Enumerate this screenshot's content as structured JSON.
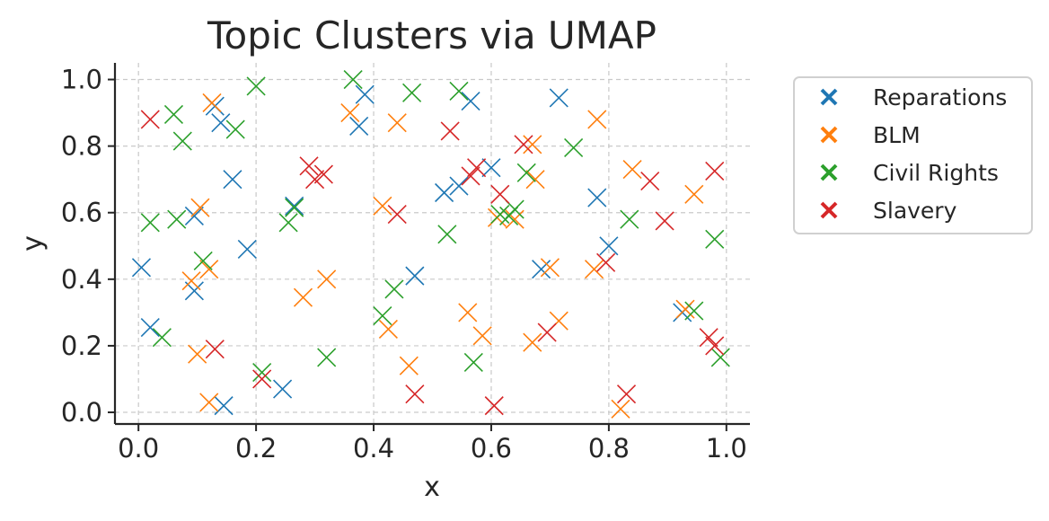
{
  "chart_data": {
    "type": "scatter",
    "title": "Topic Clusters via UMAP",
    "xlabel": "x",
    "ylabel": "y",
    "xlim": [
      -0.04,
      1.04
    ],
    "ylim": [
      -0.035,
      1.05
    ],
    "xticks": [
      0.0,
      0.2,
      0.4,
      0.6,
      0.8,
      1.0
    ],
    "xtick_labels": [
      "0.0",
      "0.2",
      "0.4",
      "0.6",
      "0.8",
      "1.0"
    ],
    "yticks": [
      0.0,
      0.2,
      0.4,
      0.6,
      0.8,
      1.0
    ],
    "ytick_labels": [
      "0.0",
      "0.2",
      "0.4",
      "0.6",
      "0.8",
      "1.0"
    ],
    "grid": true,
    "legend_position": "outside-right-top",
    "marker": "x",
    "series": [
      {
        "name": "Reparations",
        "color": "#1f77b4",
        "points": [
          [
            0.005,
            0.435
          ],
          [
            0.02,
            0.255
          ],
          [
            0.095,
            0.365
          ],
          [
            0.095,
            0.59
          ],
          [
            0.13,
            0.92
          ],
          [
            0.14,
            0.87
          ],
          [
            0.145,
            0.02
          ],
          [
            0.16,
            0.7
          ],
          [
            0.185,
            0.49
          ],
          [
            0.245,
            0.07
          ],
          [
            0.265,
            0.62
          ],
          [
            0.375,
            0.86
          ],
          [
            0.385,
            0.955
          ],
          [
            0.47,
            0.41
          ],
          [
            0.52,
            0.66
          ],
          [
            0.545,
            0.68
          ],
          [
            0.565,
            0.935
          ],
          [
            0.6,
            0.735
          ],
          [
            0.685,
            0.43
          ],
          [
            0.715,
            0.945
          ],
          [
            0.78,
            0.645
          ],
          [
            0.8,
            0.5
          ],
          [
            0.925,
            0.3
          ]
        ]
      },
      {
        "name": "BLM",
        "color": "#ff7f0e",
        "points": [
          [
            0.09,
            0.395
          ],
          [
            0.1,
            0.175
          ],
          [
            0.105,
            0.615
          ],
          [
            0.12,
            0.03
          ],
          [
            0.12,
            0.43
          ],
          [
            0.125,
            0.93
          ],
          [
            0.28,
            0.345
          ],
          [
            0.32,
            0.4
          ],
          [
            0.36,
            0.9
          ],
          [
            0.415,
            0.62
          ],
          [
            0.425,
            0.25
          ],
          [
            0.44,
            0.87
          ],
          [
            0.46,
            0.14
          ],
          [
            0.56,
            0.3
          ],
          [
            0.585,
            0.23
          ],
          [
            0.61,
            0.585
          ],
          [
            0.64,
            0.58
          ],
          [
            0.67,
            0.21
          ],
          [
            0.67,
            0.805
          ],
          [
            0.675,
            0.7
          ],
          [
            0.7,
            0.435
          ],
          [
            0.715,
            0.275
          ],
          [
            0.775,
            0.43
          ],
          [
            0.78,
            0.88
          ],
          [
            0.82,
            0.01
          ],
          [
            0.84,
            0.73
          ],
          [
            0.93,
            0.31
          ],
          [
            0.945,
            0.655
          ]
        ]
      },
      {
        "name": "Civil Rights",
        "color": "#2ca02c",
        "points": [
          [
            0.02,
            0.57
          ],
          [
            0.04,
            0.225
          ],
          [
            0.06,
            0.895
          ],
          [
            0.065,
            0.58
          ],
          [
            0.075,
            0.815
          ],
          [
            0.11,
            0.455
          ],
          [
            0.165,
            0.85
          ],
          [
            0.2,
            0.98
          ],
          [
            0.21,
            0.12
          ],
          [
            0.255,
            0.57
          ],
          [
            0.265,
            0.615
          ],
          [
            0.32,
            0.165
          ],
          [
            0.365,
            1.0
          ],
          [
            0.415,
            0.29
          ],
          [
            0.435,
            0.37
          ],
          [
            0.465,
            0.96
          ],
          [
            0.525,
            0.535
          ],
          [
            0.545,
            0.965
          ],
          [
            0.57,
            0.15
          ],
          [
            0.615,
            0.595
          ],
          [
            0.63,
            0.59
          ],
          [
            0.64,
            0.61
          ],
          [
            0.66,
            0.72
          ],
          [
            0.74,
            0.795
          ],
          [
            0.835,
            0.58
          ],
          [
            0.945,
            0.305
          ],
          [
            0.98,
            0.52
          ],
          [
            0.99,
            0.165
          ]
        ]
      },
      {
        "name": "Slavery",
        "color": "#d62728",
        "points": [
          [
            0.02,
            0.88
          ],
          [
            0.13,
            0.19
          ],
          [
            0.21,
            0.1
          ],
          [
            0.29,
            0.74
          ],
          [
            0.3,
            0.7
          ],
          [
            0.315,
            0.715
          ],
          [
            0.44,
            0.595
          ],
          [
            0.47,
            0.055
          ],
          [
            0.53,
            0.845
          ],
          [
            0.565,
            0.71
          ],
          [
            0.575,
            0.735
          ],
          [
            0.605,
            0.02
          ],
          [
            0.615,
            0.655
          ],
          [
            0.655,
            0.805
          ],
          [
            0.695,
            0.24
          ],
          [
            0.795,
            0.45
          ],
          [
            0.83,
            0.055
          ],
          [
            0.87,
            0.695
          ],
          [
            0.895,
            0.575
          ],
          [
            0.97,
            0.225
          ],
          [
            0.98,
            0.2
          ],
          [
            0.98,
            0.725
          ]
        ]
      }
    ]
  }
}
